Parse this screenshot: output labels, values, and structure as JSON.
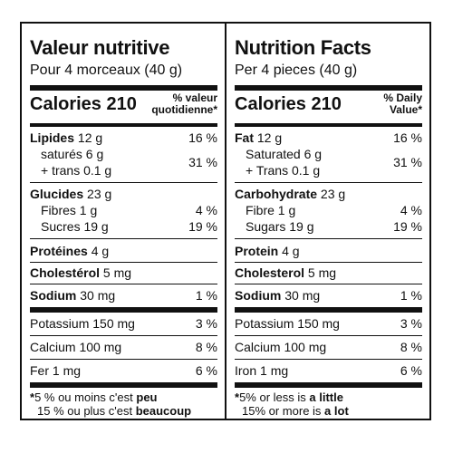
{
  "fr": {
    "title": "Valeur nutritive",
    "serving": "Pour 4 morceaux (40 g)",
    "calories_label": "Calories",
    "calories_value": "210",
    "dv_header": "% valeur\nquotidienne*",
    "fat_label": "Lipides",
    "fat_amount": "12 g",
    "fat_pct": "16 %",
    "sat_label": "saturés 6 g",
    "trans_label": "+ trans 0.1 g",
    "sat_trans_pct": "31 %",
    "carb_label": "Glucides",
    "carb_amount": "23 g",
    "fibre_label": "Fibres 1 g",
    "fibre_pct": "4 %",
    "sugar_label": "Sucres 19 g",
    "sugar_pct": "19 %",
    "protein_label": "Protéines",
    "protein_amount": "4 g",
    "chol_label": "Cholestérol",
    "chol_amount": "5 mg",
    "sodium_label": "Sodium",
    "sodium_amount": "30 mg",
    "sodium_pct": "1 %",
    "potassium_label": "Potassium 150 mg",
    "potassium_pct": "3 %",
    "calcium_label": "Calcium 100 mg",
    "calcium_pct": "8 %",
    "iron_label": "Fer 1 mg",
    "iron_pct": "6 %",
    "foot_star": "*",
    "foot1_a": "5 % ou moins c'est ",
    "foot1_b": "peu",
    "foot2_a": "15 % ou plus c'est ",
    "foot2_b": "beaucoup"
  },
  "en": {
    "title": "Nutrition Facts",
    "serving": "Per 4 pieces (40 g)",
    "calories_label": "Calories",
    "calories_value": "210",
    "dv_header": "% Daily\nValue*",
    "fat_label": "Fat",
    "fat_amount": "12 g",
    "fat_pct": "16 %",
    "sat_label": "Saturated 6 g",
    "trans_label": "+ Trans 0.1 g",
    "sat_trans_pct": "31 %",
    "carb_label": "Carbohydrate",
    "carb_amount": "23 g",
    "fibre_label": "Fibre 1 g",
    "fibre_pct": "4 %",
    "sugar_label": "Sugars 19 g",
    "sugar_pct": "19 %",
    "protein_label": "Protein",
    "protein_amount": "4 g",
    "chol_label": "Cholesterol",
    "chol_amount": "5 mg",
    "sodium_label": "Sodium",
    "sodium_amount": "30 mg",
    "sodium_pct": "1 %",
    "potassium_label": "Potassium 150 mg",
    "potassium_pct": "3 %",
    "calcium_label": "Calcium 100 mg",
    "calcium_pct": "8 %",
    "iron_label": "Iron 1 mg",
    "iron_pct": "6 %",
    "foot_star": "*",
    "foot1_a": "5% or less is ",
    "foot1_b": "a little",
    "foot2_a": "15% or more is ",
    "foot2_b": "a lot"
  }
}
